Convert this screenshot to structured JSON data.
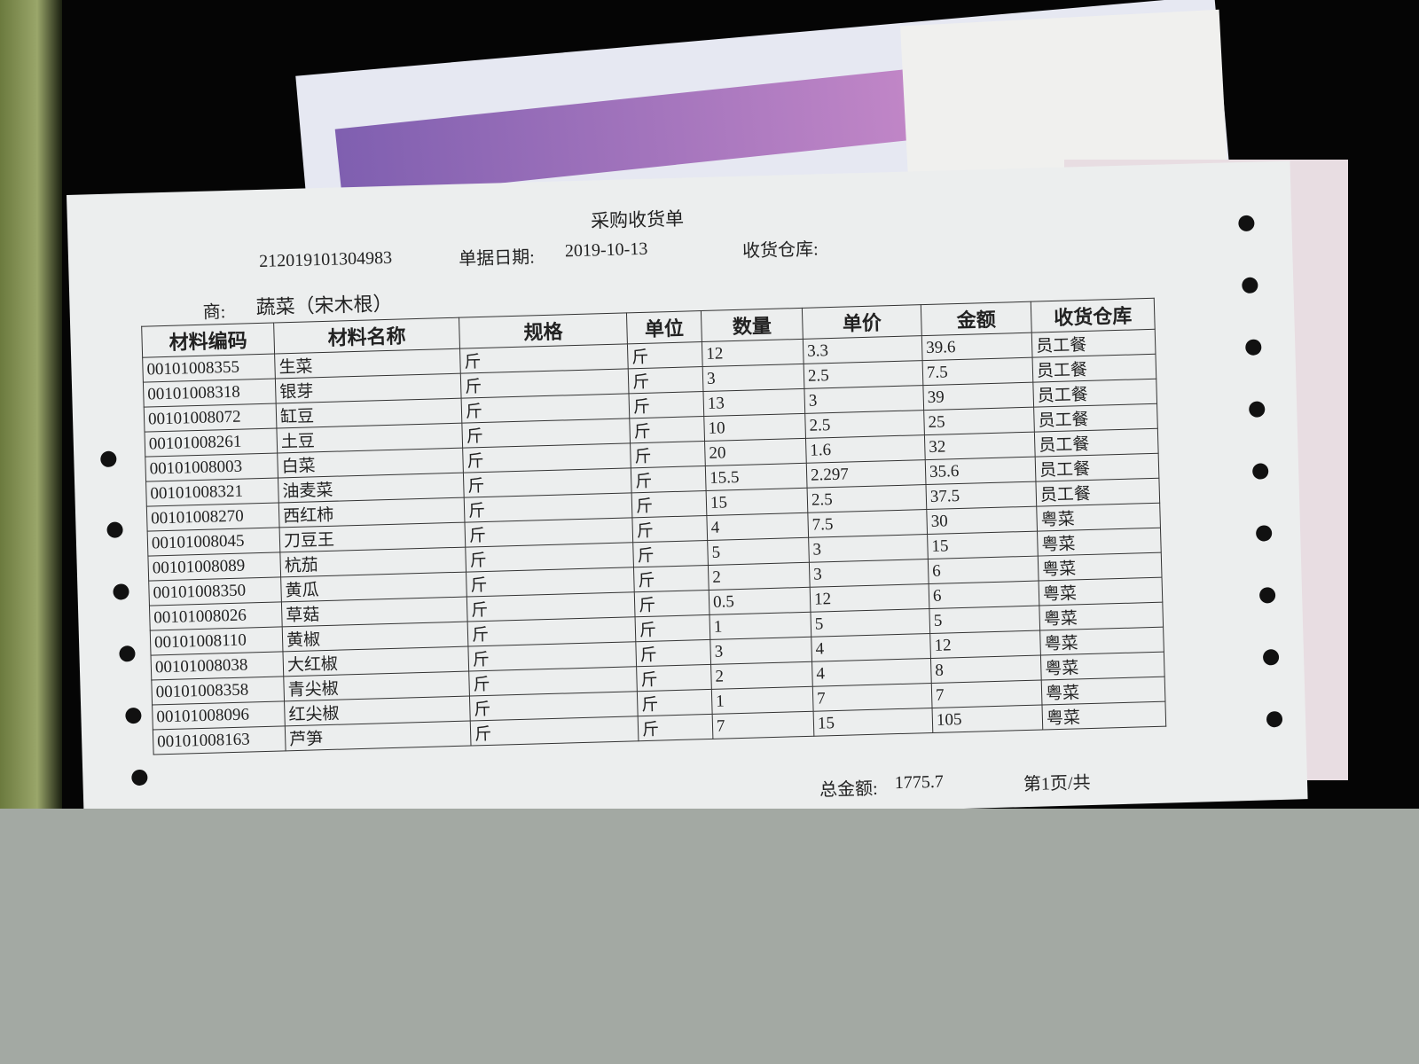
{
  "document": {
    "title": "采购收货单",
    "doc_number": "212019101304983",
    "date_label": "单据日期:",
    "date": "2019-10-13",
    "warehouse_label": "收货仓库:",
    "supplier_label": "商:",
    "supplier": "蔬菜（宋木根）",
    "table": {
      "headers": [
        "材料编码",
        "材料名称",
        "规格",
        "单位",
        "数量",
        "单价",
        "金额",
        "收货仓库"
      ],
      "rows": [
        [
          "00101008355",
          "生菜",
          "斤",
          "斤",
          "12",
          "3.3",
          "39.6",
          "员工餐"
        ],
        [
          "00101008318",
          "银芽",
          "斤",
          "斤",
          "3",
          "2.5",
          "7.5",
          "员工餐"
        ],
        [
          "00101008072",
          "缸豆",
          "斤",
          "斤",
          "13",
          "3",
          "39",
          "员工餐"
        ],
        [
          "00101008261",
          "土豆",
          "斤",
          "斤",
          "10",
          "2.5",
          "25",
          "员工餐"
        ],
        [
          "00101008003",
          "白菜",
          "斤",
          "斤",
          "20",
          "1.6",
          "32",
          "员工餐"
        ],
        [
          "00101008321",
          "油麦菜",
          "斤",
          "斤",
          "15.5",
          "2.297",
          "35.6",
          "员工餐"
        ],
        [
          "00101008270",
          "西红柿",
          "斤",
          "斤",
          "15",
          "2.5",
          "37.5",
          "员工餐"
        ],
        [
          "00101008045",
          "刀豆王",
          "斤",
          "斤",
          "4",
          "7.5",
          "30",
          "粤菜"
        ],
        [
          "00101008089",
          "杭茄",
          "斤",
          "斤",
          "5",
          "3",
          "15",
          "粤菜"
        ],
        [
          "00101008350",
          "黄瓜",
          "斤",
          "斤",
          "2",
          "3",
          "6",
          "粤菜"
        ],
        [
          "00101008026",
          "草菇",
          "斤",
          "斤",
          "0.5",
          "12",
          "6",
          "粤菜"
        ],
        [
          "00101008110",
          "黄椒",
          "斤",
          "斤",
          "1",
          "5",
          "5",
          "粤菜"
        ],
        [
          "00101008038",
          "大红椒",
          "斤",
          "斤",
          "3",
          "4",
          "12",
          "粤菜"
        ],
        [
          "00101008358",
          "青尖椒",
          "斤",
          "斤",
          "2",
          "4",
          "8",
          "粤菜"
        ],
        [
          "00101008096",
          "红尖椒",
          "斤",
          "斤",
          "1",
          "7",
          "7",
          "粤菜"
        ],
        [
          "00101008163",
          "芦笋",
          "斤",
          "斤",
          "7",
          "15",
          "105",
          "粤菜"
        ]
      ]
    },
    "total_label": "总金额:",
    "total": "1775.7",
    "page": "第1页/共"
  }
}
